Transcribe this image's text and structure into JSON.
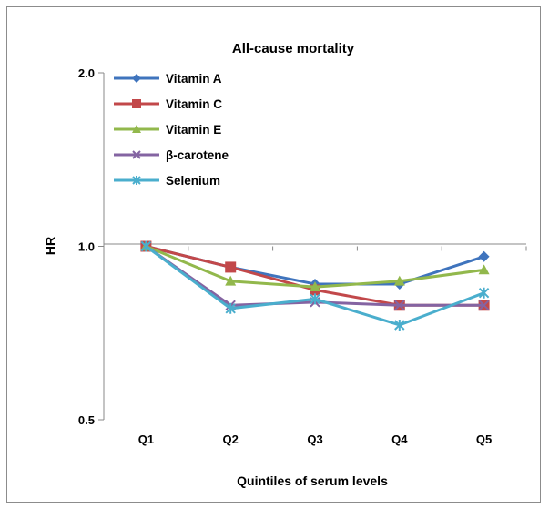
{
  "chart_data": {
    "type": "line",
    "title": "All-cause mortality",
    "xlabel": "Quintiles of serum levels",
    "ylabel": "HR",
    "y_scale": "log",
    "ylim": [
      0.5,
      2.0
    ],
    "yticks": [
      "0.5",
      "1.0",
      "2.0"
    ],
    "categories": [
      "Q1",
      "Q2",
      "Q3",
      "Q4",
      "Q5"
    ],
    "legend_position": "top-left",
    "grid": false,
    "series": [
      {
        "name": "Vitamin A",
        "color": "#3f74bd",
        "marker": "diamond",
        "values": [
          1.0,
          0.92,
          0.86,
          0.86,
          0.96
        ]
      },
      {
        "name": "Vitamin C",
        "color": "#c2484a",
        "marker": "square",
        "values": [
          1.0,
          0.92,
          0.84,
          0.79,
          0.79
        ]
      },
      {
        "name": "Vitamin E",
        "color": "#92b84c",
        "marker": "triangle",
        "values": [
          1.0,
          0.87,
          0.85,
          0.87,
          0.91
        ]
      },
      {
        "name": "β-carotene",
        "color": "#8464a2",
        "marker": "x",
        "values": [
          1.0,
          0.79,
          0.8,
          0.79,
          0.79
        ]
      },
      {
        "name": "Selenium",
        "color": "#4aaecd",
        "marker": "star",
        "values": [
          1.0,
          0.78,
          0.81,
          0.73,
          0.83
        ]
      }
    ]
  }
}
